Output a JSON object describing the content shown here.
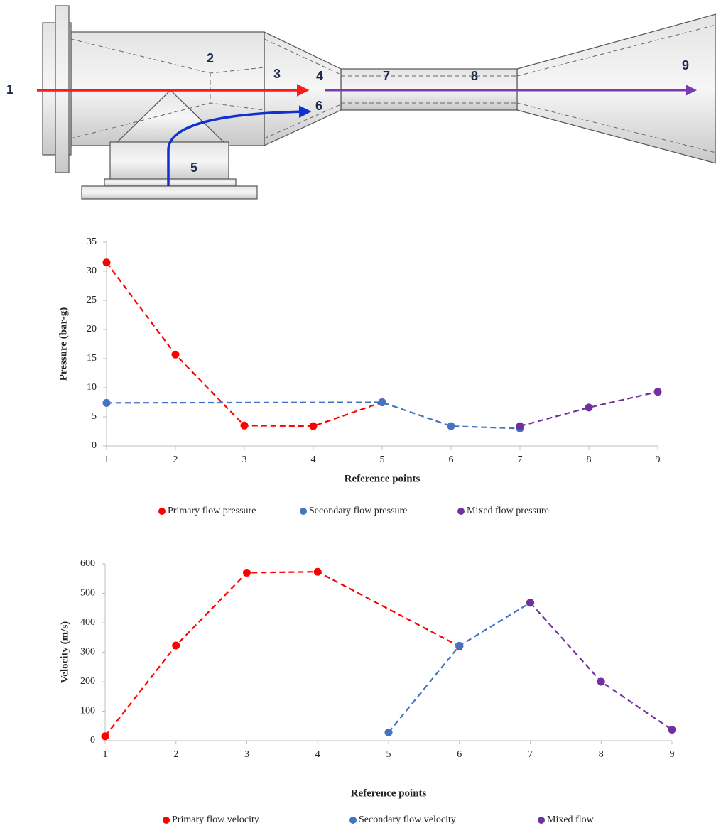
{
  "diagram": {
    "labels": [
      "1",
      "2",
      "3",
      "4",
      "5",
      "6",
      "7",
      "8",
      "9"
    ]
  },
  "chart_data": [
    {
      "type": "line",
      "xlabel": "Reference points",
      "ylabel": "Pressure (bar-g)",
      "xlim": [
        1,
        9
      ],
      "xticks": [
        1,
        2,
        3,
        4,
        5,
        6,
        7,
        8,
        9
      ],
      "ylim": [
        0,
        35
      ],
      "yticks": [
        0,
        5,
        10,
        15,
        20,
        25,
        30,
        35
      ],
      "grid": false,
      "legend": "bottom",
      "series": [
        {
          "name": "Primary flow pressure",
          "color": "#ff0000",
          "x": [
            1,
            2,
            3,
            4,
            5
          ],
          "values": [
            31.5,
            15.7,
            3.5,
            3.4,
            7.5
          ]
        },
        {
          "name": "Secondary flow pressure",
          "color": "#4472c4",
          "x": [
            1,
            5,
            6,
            7
          ],
          "values": [
            7.4,
            7.5,
            3.4,
            3.0
          ]
        },
        {
          "name": "Mixed flow pressure",
          "color": "#7030a0",
          "x": [
            7,
            8,
            9
          ],
          "values": [
            3.4,
            6.6,
            9.3
          ]
        }
      ]
    },
    {
      "type": "line",
      "xlabel": "Reference points",
      "ylabel": "Velocity (m/s)",
      "xlim": [
        1,
        9
      ],
      "xticks": [
        1,
        2,
        3,
        4,
        5,
        6,
        7,
        8,
        9
      ],
      "ylim": [
        0,
        600
      ],
      "yticks": [
        0,
        100,
        200,
        300,
        400,
        500,
        600
      ],
      "grid": false,
      "legend": "bottom",
      "series": [
        {
          "name": "Primary flow velocity",
          "color": "#ff0000",
          "x": [
            1,
            2,
            3,
            4,
            6
          ],
          "values": [
            15,
            323,
            570,
            573,
            320
          ]
        },
        {
          "name": "Secondary flow velocity",
          "color": "#4472c4",
          "x": [
            5,
            6,
            7
          ],
          "values": [
            28,
            322,
            468
          ]
        },
        {
          "name": "Mixed flow",
          "color": "#7030a0",
          "x": [
            7,
            8,
            9
          ],
          "values": [
            468,
            200,
            37
          ]
        }
      ]
    }
  ]
}
